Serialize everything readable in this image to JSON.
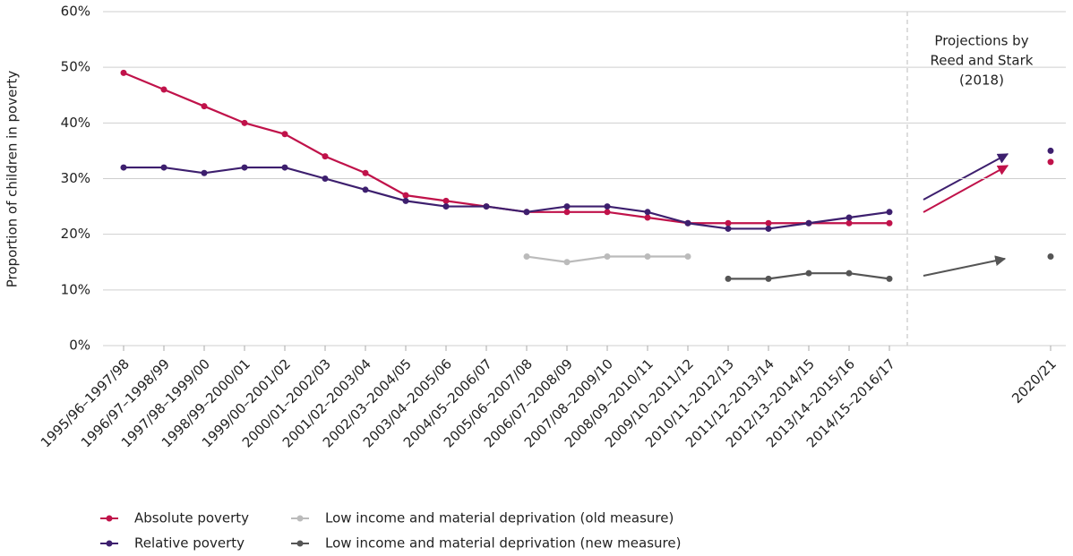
{
  "chart_data": {
    "type": "line",
    "y_label": "Proportion of children in poverty",
    "annotation": [
      "Projections by",
      "Reed and Stark",
      "(2018)"
    ],
    "categories": [
      "1995/96–1997/98",
      "1996/97–1998/99",
      "1997/98–1999/00",
      "1998/99–2000/01",
      "1999/00–2001/02",
      "2000/01–2002/03",
      "2001/02–2003/04",
      "2002/03–2004/05",
      "2003/04–2005/06",
      "2004/05–2006/07",
      "2005/06–2007/08",
      "2006/07–2008/09",
      "2007/08–2009/10",
      "2008/09–2010/11",
      "2009/10–2011/12",
      "2010/11–2012/13",
      "2011/12–2013/14",
      "2012/13–2014/15",
      "2013/14–2015/16",
      "2014/15–2016/17",
      null,
      null,
      null,
      "2020/21"
    ],
    "series": [
      {
        "name": "Absolute poverty",
        "color": "#c0124a",
        "values": [
          49,
          46,
          43,
          40,
          38,
          34,
          31,
          27,
          26,
          25,
          24,
          24,
          24,
          23,
          22,
          22,
          22,
          22,
          22,
          22,
          null,
          null,
          null,
          33
        ]
      },
      {
        "name": "Relative poverty",
        "color": "#3d1f6e",
        "values": [
          32,
          32,
          31,
          32,
          32,
          30,
          28,
          26,
          25,
          25,
          24,
          25,
          25,
          24,
          22,
          21,
          21,
          22,
          23,
          24,
          null,
          null,
          null,
          35
        ]
      },
      {
        "name": "Low income and material deprivation (old measure)",
        "color": "#bbbbbb",
        "values": [
          null,
          null,
          null,
          null,
          null,
          null,
          null,
          null,
          null,
          null,
          16,
          15,
          16,
          16,
          16,
          null,
          null,
          null,
          null,
          null,
          null,
          null,
          null,
          null
        ]
      },
      {
        "name": "Low income and material deprivation (new measure)",
        "color": "#555555",
        "values": [
          null,
          null,
          null,
          null,
          null,
          null,
          null,
          null,
          null,
          null,
          null,
          null,
          null,
          null,
          null,
          12,
          12,
          13,
          13,
          12,
          null,
          null,
          null,
          16
        ]
      }
    ],
    "ylim": [
      0,
      60
    ],
    "yticks": [
      {
        "value": 0,
        "label": "0%"
      },
      {
        "value": 10,
        "label": "10%"
      },
      {
        "value": 20,
        "label": "20%"
      },
      {
        "value": 30,
        "label": "30%"
      },
      {
        "value": 40,
        "label": "40%"
      },
      {
        "value": 50,
        "label": "50%"
      },
      {
        "value": 60,
        "label": "60%"
      }
    ],
    "grid": true
  }
}
